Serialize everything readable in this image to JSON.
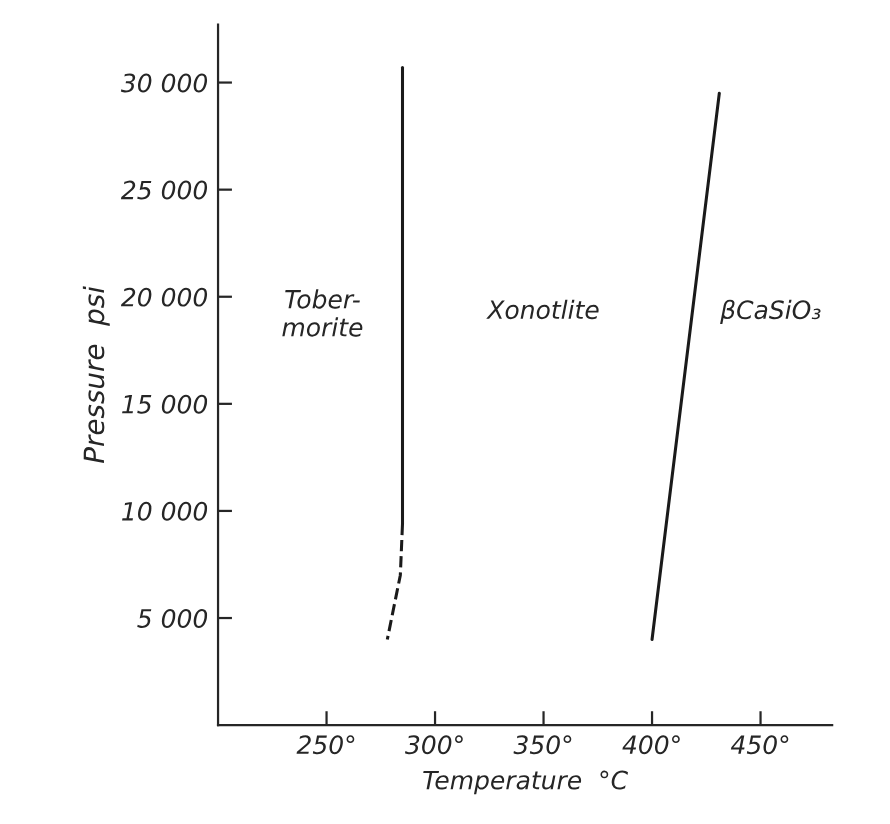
{
  "chart_data": {
    "type": "line",
    "xlabel": "Temperature  °C",
    "ylabel": "Pressure  psi",
    "xlim": [
      200,
      483
    ],
    "ylim": [
      0,
      32700
    ],
    "xticks": [
      {
        "value": 250,
        "label": "250°"
      },
      {
        "value": 300,
        "label": "300°"
      },
      {
        "value": 350,
        "label": "350°"
      },
      {
        "value": 400,
        "label": "400°"
      },
      {
        "value": 450,
        "label": "450°"
      }
    ],
    "yticks": [
      {
        "value": 5000,
        "label": "5 000"
      },
      {
        "value": 10000,
        "label": "10 000"
      },
      {
        "value": 15000,
        "label": "15 000"
      },
      {
        "value": 20000,
        "label": "20 000"
      },
      {
        "value": 25000,
        "label": "25 000"
      },
      {
        "value": 30000,
        "label": "30 000"
      }
    ],
    "grid": false,
    "marker": "none",
    "series": [
      {
        "color": "#1a1a1a",
        "line_style": "solid",
        "x": [
          285,
          285
        ],
        "values": [
          30700,
          9400
        ]
      },
      {
        "color": "#1a1a1a",
        "line_style": "dashed",
        "x": [
          285,
          284,
          281,
          278
        ],
        "values": [
          9400,
          7000,
          5500,
          4000
        ]
      },
      {
        "color": "#1a1a1a",
        "line_style": "solid",
        "x": [
          400,
          431
        ],
        "values": [
          4000,
          29500
        ]
      }
    ],
    "annotations": [
      "Tober-\nmorite",
      "Xonotlite",
      "βCaSiO₃"
    ]
  }
}
